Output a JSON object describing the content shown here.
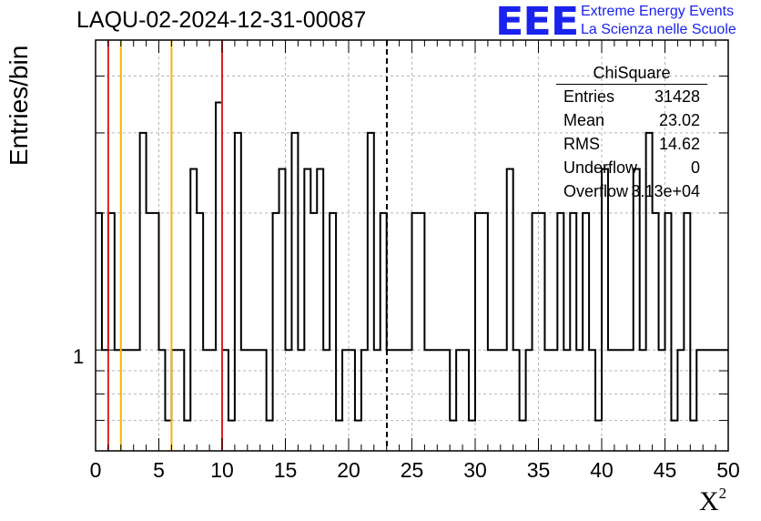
{
  "title": "LAQU-02-2024-12-31-00087",
  "logo": {
    "mark": "EEE",
    "line1": "Extreme Energy Events",
    "line2": "La Scienza nelle Scuole",
    "color": "#1a22ee"
  },
  "stats": {
    "name": "ChiSquare",
    "rows": [
      {
        "label": "Entries",
        "value": "31428"
      },
      {
        "label": "Mean",
        "value": "23.02"
      },
      {
        "label": "RMS",
        "value": "14.62"
      },
      {
        "label": "Underflow",
        "value": "0"
      },
      {
        "label": "Overflow",
        "value": "3.13e+04"
      }
    ]
  },
  "chart_data": {
    "type": "histogram",
    "title": "LAQU-02-2024-12-31-00087",
    "xlabel": "X²",
    "ylabel": "Entries/bin",
    "yscale": "log",
    "xlim": [
      0,
      50
    ],
    "bin_width": 0.5,
    "xticks": [
      0,
      5,
      10,
      15,
      20,
      25,
      30,
      35,
      40,
      45,
      50
    ],
    "ytick_labels": [
      {
        "value": 1,
        "label": "1"
      }
    ],
    "grid": true,
    "bins": [
      {
        "x": 0.0,
        "y": 2
      },
      {
        "x": 0.5,
        "y": 1
      },
      {
        "x": 1.0,
        "y": 2
      },
      {
        "x": 1.5,
        "y": 1
      },
      {
        "x": 2.0,
        "y": 1
      },
      {
        "x": 2.5,
        "y": 1
      },
      {
        "x": 3.0,
        "y": 1
      },
      {
        "x": 3.5,
        "y": 3
      },
      {
        "x": 4.0,
        "y": 2
      },
      {
        "x": 4.5,
        "y": 2
      },
      {
        "x": 5.0,
        "y": 1
      },
      {
        "x": 5.5,
        "y": 0.7
      },
      {
        "x": 6.0,
        "y": 1
      },
      {
        "x": 6.5,
        "y": 1
      },
      {
        "x": 7.0,
        "y": 0.7
      },
      {
        "x": 7.5,
        "y": 2.5
      },
      {
        "x": 8.0,
        "y": 2
      },
      {
        "x": 8.5,
        "y": 1
      },
      {
        "x": 9.0,
        "y": 1
      },
      {
        "x": 9.5,
        "y": 3.5
      },
      {
        "x": 10.0,
        "y": 1
      },
      {
        "x": 10.5,
        "y": 0.7
      },
      {
        "x": 11.0,
        "y": 3
      },
      {
        "x": 11.5,
        "y": 1
      },
      {
        "x": 12.0,
        "y": 1
      },
      {
        "x": 12.5,
        "y": 1
      },
      {
        "x": 13.0,
        "y": 1
      },
      {
        "x": 13.5,
        "y": 0.7
      },
      {
        "x": 14.0,
        "y": 2
      },
      {
        "x": 14.5,
        "y": 2.5
      },
      {
        "x": 15.0,
        "y": 1
      },
      {
        "x": 15.5,
        "y": 3
      },
      {
        "x": 16.0,
        "y": 1
      },
      {
        "x": 16.5,
        "y": 2.5
      },
      {
        "x": 17.0,
        "y": 2
      },
      {
        "x": 17.5,
        "y": 2.5
      },
      {
        "x": 18.0,
        "y": 1
      },
      {
        "x": 18.5,
        "y": 2
      },
      {
        "x": 19.0,
        "y": 0.7
      },
      {
        "x": 19.5,
        "y": 1
      },
      {
        "x": 20.0,
        "y": 1
      },
      {
        "x": 20.5,
        "y": 0.7
      },
      {
        "x": 21.0,
        "y": 1
      },
      {
        "x": 21.5,
        "y": 3
      },
      {
        "x": 22.0,
        "y": 1
      },
      {
        "x": 22.5,
        "y": 2
      },
      {
        "x": 23.0,
        "y": 1
      },
      {
        "x": 23.5,
        "y": 1
      },
      {
        "x": 24.0,
        "y": 1
      },
      {
        "x": 24.5,
        "y": 1
      },
      {
        "x": 25.0,
        "y": 2
      },
      {
        "x": 25.5,
        "y": 2
      },
      {
        "x": 26.0,
        "y": 1
      },
      {
        "x": 26.5,
        "y": 1
      },
      {
        "x": 27.0,
        "y": 1
      },
      {
        "x": 27.5,
        "y": 1
      },
      {
        "x": 28.0,
        "y": 0.7
      },
      {
        "x": 28.5,
        "y": 1
      },
      {
        "x": 29.0,
        "y": 1
      },
      {
        "x": 29.5,
        "y": 0.7
      },
      {
        "x": 30.0,
        "y": 2
      },
      {
        "x": 30.5,
        "y": 2
      },
      {
        "x": 31.0,
        "y": 1
      },
      {
        "x": 31.5,
        "y": 1
      },
      {
        "x": 32.0,
        "y": 1
      },
      {
        "x": 32.5,
        "y": 2.5
      },
      {
        "x": 33.0,
        "y": 1
      },
      {
        "x": 33.5,
        "y": 0.7
      },
      {
        "x": 34.0,
        "y": 1
      },
      {
        "x": 34.5,
        "y": 2
      },
      {
        "x": 35.0,
        "y": 2
      },
      {
        "x": 35.5,
        "y": 1
      },
      {
        "x": 36.0,
        "y": 1
      },
      {
        "x": 36.5,
        "y": 2
      },
      {
        "x": 37.0,
        "y": 1
      },
      {
        "x": 37.5,
        "y": 2
      },
      {
        "x": 38.0,
        "y": 1
      },
      {
        "x": 38.5,
        "y": 2
      },
      {
        "x": 39.0,
        "y": 1
      },
      {
        "x": 39.5,
        "y": 0.7
      },
      {
        "x": 40.0,
        "y": 2.5
      },
      {
        "x": 40.5,
        "y": 1
      },
      {
        "x": 41.0,
        "y": 1
      },
      {
        "x": 41.5,
        "y": 1
      },
      {
        "x": 42.0,
        "y": 1
      },
      {
        "x": 42.5,
        "y": 2.5
      },
      {
        "x": 43.0,
        "y": 1
      },
      {
        "x": 43.5,
        "y": 3
      },
      {
        "x": 44.0,
        "y": 2
      },
      {
        "x": 44.5,
        "y": 1
      },
      {
        "x": 45.0,
        "y": 2
      },
      {
        "x": 45.5,
        "y": 0.7
      },
      {
        "x": 46.0,
        "y": 1
      },
      {
        "x": 46.5,
        "y": 2
      },
      {
        "x": 47.0,
        "y": 0.7
      },
      {
        "x": 47.5,
        "y": 1
      },
      {
        "x": 48.0,
        "y": 1
      },
      {
        "x": 48.5,
        "y": 1
      },
      {
        "x": 49.0,
        "y": 1
      },
      {
        "x": 49.5,
        "y": 1
      }
    ],
    "reference_lines": [
      {
        "x": 1,
        "color": "#dd2222",
        "style": "solid"
      },
      {
        "x": 2,
        "color": "#f2b705",
        "style": "solid"
      },
      {
        "x": 6,
        "color": "#f2b705",
        "style": "solid"
      },
      {
        "x": 10,
        "color": "#dd2222",
        "style": "solid"
      },
      {
        "x": 23.02,
        "color": "#000000",
        "style": "dashed"
      }
    ]
  }
}
